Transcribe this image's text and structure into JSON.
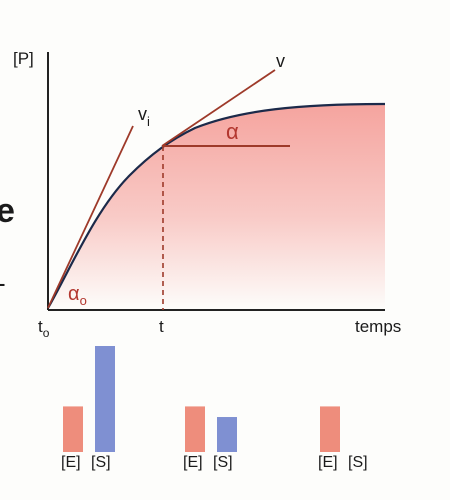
{
  "diagram": {
    "y_axis_label": "[P]",
    "x_axis_label": "temps",
    "origin_label": "t",
    "origin_subscript": "o",
    "time_label": "t",
    "initial_velocity_label": "v",
    "initial_velocity_subscript": "i",
    "velocity_label": "v",
    "angle_label": "α",
    "initial_angle_label": "α",
    "initial_angle_subscript": "o",
    "margin_glyph_1": "e",
    "margin_glyph_2": "-"
  },
  "bars": {
    "enzyme_label": "[E]",
    "substrate_label": "[S]",
    "groups": [
      {
        "enzyme": 0.43,
        "substrate": 1.0
      },
      {
        "enzyme": 0.43,
        "substrate": 0.33
      },
      {
        "enzyme": 0.43,
        "substrate": 0.0
      }
    ]
  },
  "colors": {
    "curve": "#1c2a4a",
    "tangent": "#9e3a2a",
    "fill_top": "#f49a94",
    "fill_bottom": "#fdfdfb",
    "enzyme_bar": "#ee8d7c",
    "substrate_bar": "#7f90d2",
    "axis": "#222222",
    "label_red": "#b3372f"
  }
}
